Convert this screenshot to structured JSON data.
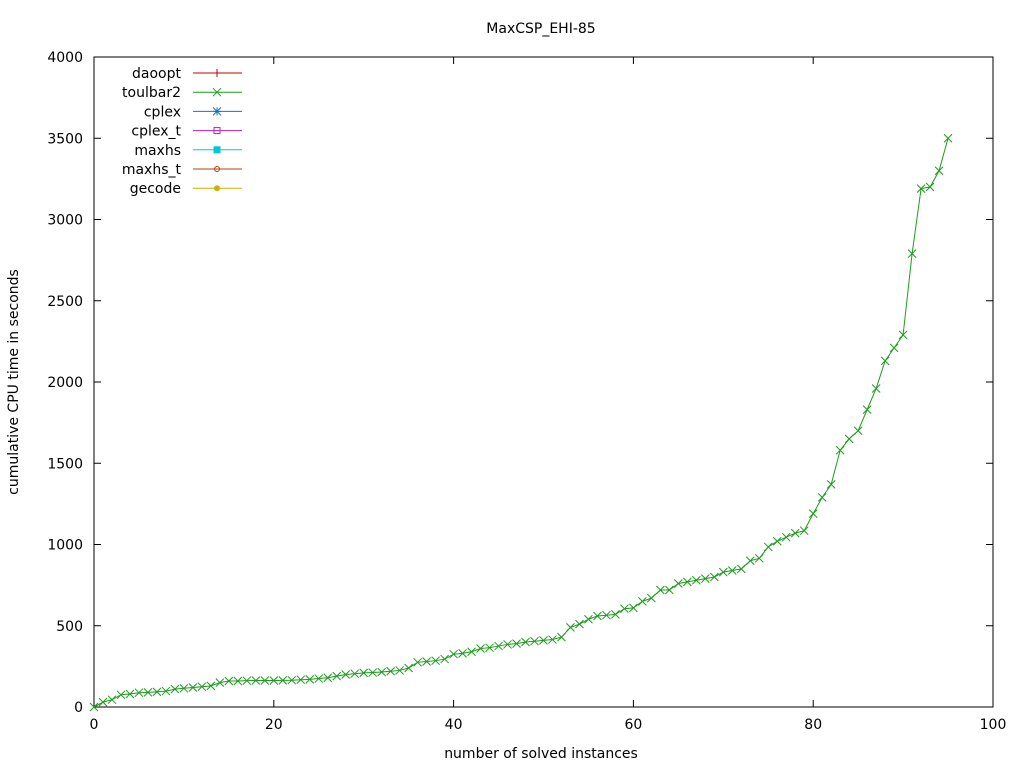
{
  "chart_data": {
    "type": "line",
    "title": "MaxCSP_EHI-85",
    "xlabel": "number of solved instances",
    "ylabel": "cumulative CPU time in seconds",
    "xlim": [
      0,
      100
    ],
    "ylim": [
      0,
      4000
    ],
    "x_ticks": [
      "0",
      "20",
      "40",
      "60",
      "80",
      "100"
    ],
    "y_ticks": [
      "0",
      "500",
      "1000",
      "1500",
      "2000",
      "2500",
      "3000",
      "3500",
      "4000"
    ],
    "grid": false,
    "legend_position": "top-left",
    "series": [
      {
        "name": "daoopt",
        "color": "#c00000",
        "marker": "plus",
        "x": [],
        "y": []
      },
      {
        "name": "toulbar2",
        "color": "#1c9c1c",
        "marker": "cross",
        "x": [
          0,
          1,
          2,
          3,
          4,
          5,
          6,
          7,
          8,
          9,
          10,
          11,
          12,
          13,
          14,
          15,
          16,
          17,
          18,
          19,
          20,
          21,
          22,
          23,
          24,
          25,
          26,
          27,
          28,
          29,
          30,
          31,
          32,
          33,
          34,
          35,
          36,
          37,
          38,
          39,
          40,
          41,
          42,
          43,
          44,
          45,
          46,
          47,
          48,
          49,
          50,
          51,
          52,
          53,
          54,
          55,
          56,
          57,
          58,
          59,
          60,
          61,
          62,
          63,
          64,
          65,
          66,
          67,
          68,
          69,
          70,
          71,
          72,
          73,
          74,
          75,
          76,
          77,
          78,
          79,
          80,
          81,
          82,
          83,
          84,
          85,
          86,
          87,
          88,
          89,
          90,
          91,
          92,
          93,
          94,
          95
        ],
        "y": [
          0,
          30,
          45,
          75,
          80,
          88,
          90,
          93,
          98,
          110,
          115,
          120,
          125,
          130,
          150,
          160,
          160,
          162,
          163,
          163,
          163,
          164,
          165,
          168,
          170,
          175,
          180,
          190,
          200,
          205,
          210,
          212,
          215,
          220,
          225,
          240,
          275,
          280,
          285,
          295,
          325,
          330,
          340,
          360,
          365,
          375,
          385,
          390,
          400,
          405,
          410,
          415,
          430,
          490,
          510,
          540,
          560,
          565,
          570,
          605,
          610,
          650,
          670,
          720,
          720,
          760,
          770,
          780,
          790,
          800,
          830,
          840,
          850,
          900,
          915,
          985,
          1020,
          1045,
          1070,
          1085,
          1190,
          1290,
          1370,
          1580,
          1650,
          1700,
          1830,
          1960,
          2130,
          2210,
          2290,
          2790,
          3190,
          3200,
          3300,
          3500
        ]
      },
      {
        "name": "cplex",
        "color": "#1f6fc0",
        "marker": "star",
        "x": [],
        "y": []
      },
      {
        "name": "cplex_t",
        "color": "#b020c0",
        "marker": "square-open",
        "x": [],
        "y": []
      },
      {
        "name": "maxhs",
        "color": "#00c8d0",
        "marker": "square-filled",
        "x": [],
        "y": []
      },
      {
        "name": "maxhs_t",
        "color": "#b04010",
        "marker": "circle-open",
        "x": [],
        "y": []
      },
      {
        "name": "gecode",
        "color": "#c8b400",
        "marker": "circle-filled",
        "x": [],
        "y": []
      }
    ]
  }
}
